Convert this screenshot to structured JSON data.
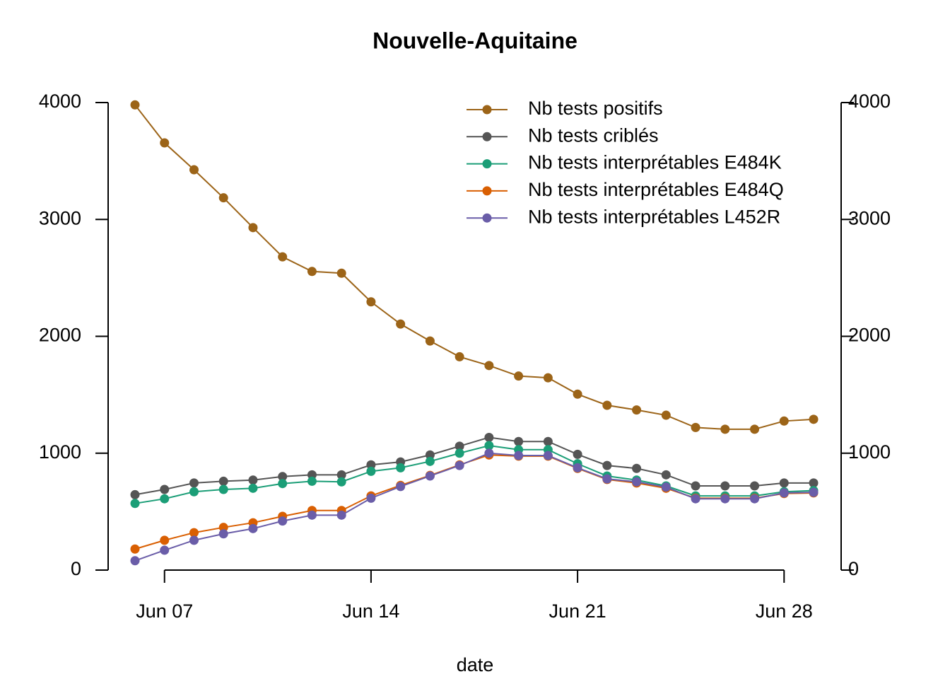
{
  "chart_data": {
    "type": "line",
    "title": "Nouvelle-Aquitaine",
    "x_label": "date",
    "categories": [
      null,
      "Jun 07",
      null,
      null,
      null,
      null,
      null,
      null,
      "Jun 14",
      null,
      null,
      null,
      null,
      null,
      null,
      "Jun 21",
      null,
      null,
      null,
      null,
      null,
      null,
      "Jun 28",
      null
    ],
    "series": [
      {
        "name": "Nb tests positifs",
        "color": "#9C6418",
        "values": [
          3980,
          3655,
          3425,
          3185,
          2930,
          2680,
          2555,
          2540,
          2295,
          2105,
          1960,
          1825,
          1750,
          1660,
          1645,
          1505,
          1410,
          1370,
          1325,
          1220,
          1205,
          1205,
          1275,
          1290
        ]
      },
      {
        "name": "Nb tests criblés",
        "color": "#555555",
        "values": [
          645,
          690,
          745,
          760,
          770,
          800,
          815,
          815,
          900,
          925,
          985,
          1060,
          1135,
          1100,
          1100,
          990,
          895,
          870,
          815,
          720,
          720,
          720,
          745,
          745
        ]
      },
      {
        "name": "Nb tests interprétables E484K",
        "color": "#1B9E77",
        "values": [
          570,
          610,
          670,
          690,
          700,
          740,
          760,
          755,
          845,
          875,
          930,
          1000,
          1065,
          1030,
          1030,
          910,
          805,
          770,
          720,
          635,
          635,
          635,
          670,
          680
        ]
      },
      {
        "name": "Nb tests interprétables E484Q",
        "color": "#D95F02",
        "values": [
          180,
          255,
          320,
          365,
          405,
          460,
          510,
          510,
          635,
          725,
          810,
          900,
          985,
          975,
          975,
          870,
          775,
          745,
          700,
          615,
          615,
          615,
          655,
          660
        ]
      },
      {
        "name": "Nb tests interprétables L452R",
        "color": "#6A5DA8",
        "values": [
          80,
          170,
          255,
          310,
          355,
          420,
          470,
          470,
          615,
          715,
          805,
          895,
          1000,
          980,
          980,
          875,
          780,
          755,
          710,
          610,
          610,
          610,
          660,
          665
        ]
      }
    ],
    "ylim": [
      0,
      4000
    ],
    "yticks": [
      0,
      1000,
      2000,
      3000,
      4000
    ],
    "y2lim": [
      0,
      4000
    ],
    "y2ticks": [
      0,
      1000,
      2000,
      3000,
      4000
    ],
    "legend": "top-right"
  }
}
